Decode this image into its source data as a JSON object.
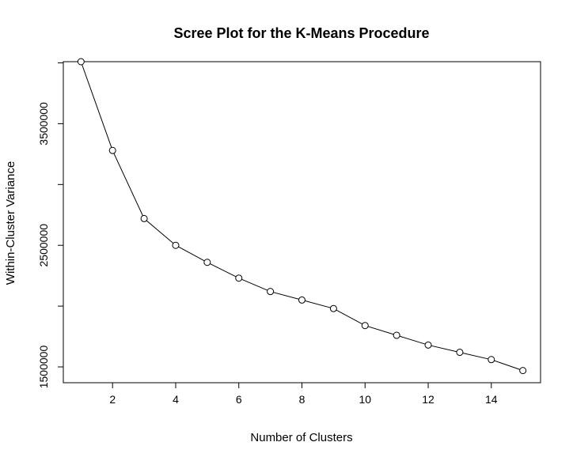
{
  "chart_data": {
    "type": "line",
    "title": "Scree Plot for the K-Means Procedure",
    "xlabel": "Number of Clusters",
    "ylabel": "Within-Cluster Variance",
    "x_ticks": [
      "2",
      "4",
      "6",
      "8",
      "10",
      "12",
      "14"
    ],
    "y_ticks": [
      "1500000",
      "2500000",
      "3500000"
    ],
    "xlim": [
      0.44,
      15.56
    ],
    "ylim": [
      1370000,
      4010000
    ],
    "series": [
      {
        "x": [
          1,
          2,
          3,
          4,
          5,
          6,
          7,
          8,
          9,
          10,
          11,
          12,
          13,
          14,
          15
        ],
        "y": [
          4010000,
          3280000,
          2720000,
          2500000,
          2360000,
          2230000,
          2120000,
          2050000,
          1980000,
          1840000,
          1760000,
          1680000,
          1620000,
          1560000,
          1470000
        ],
        "marker": "open-circle",
        "color": "#000000"
      }
    ],
    "grid": false,
    "legend": "none"
  }
}
